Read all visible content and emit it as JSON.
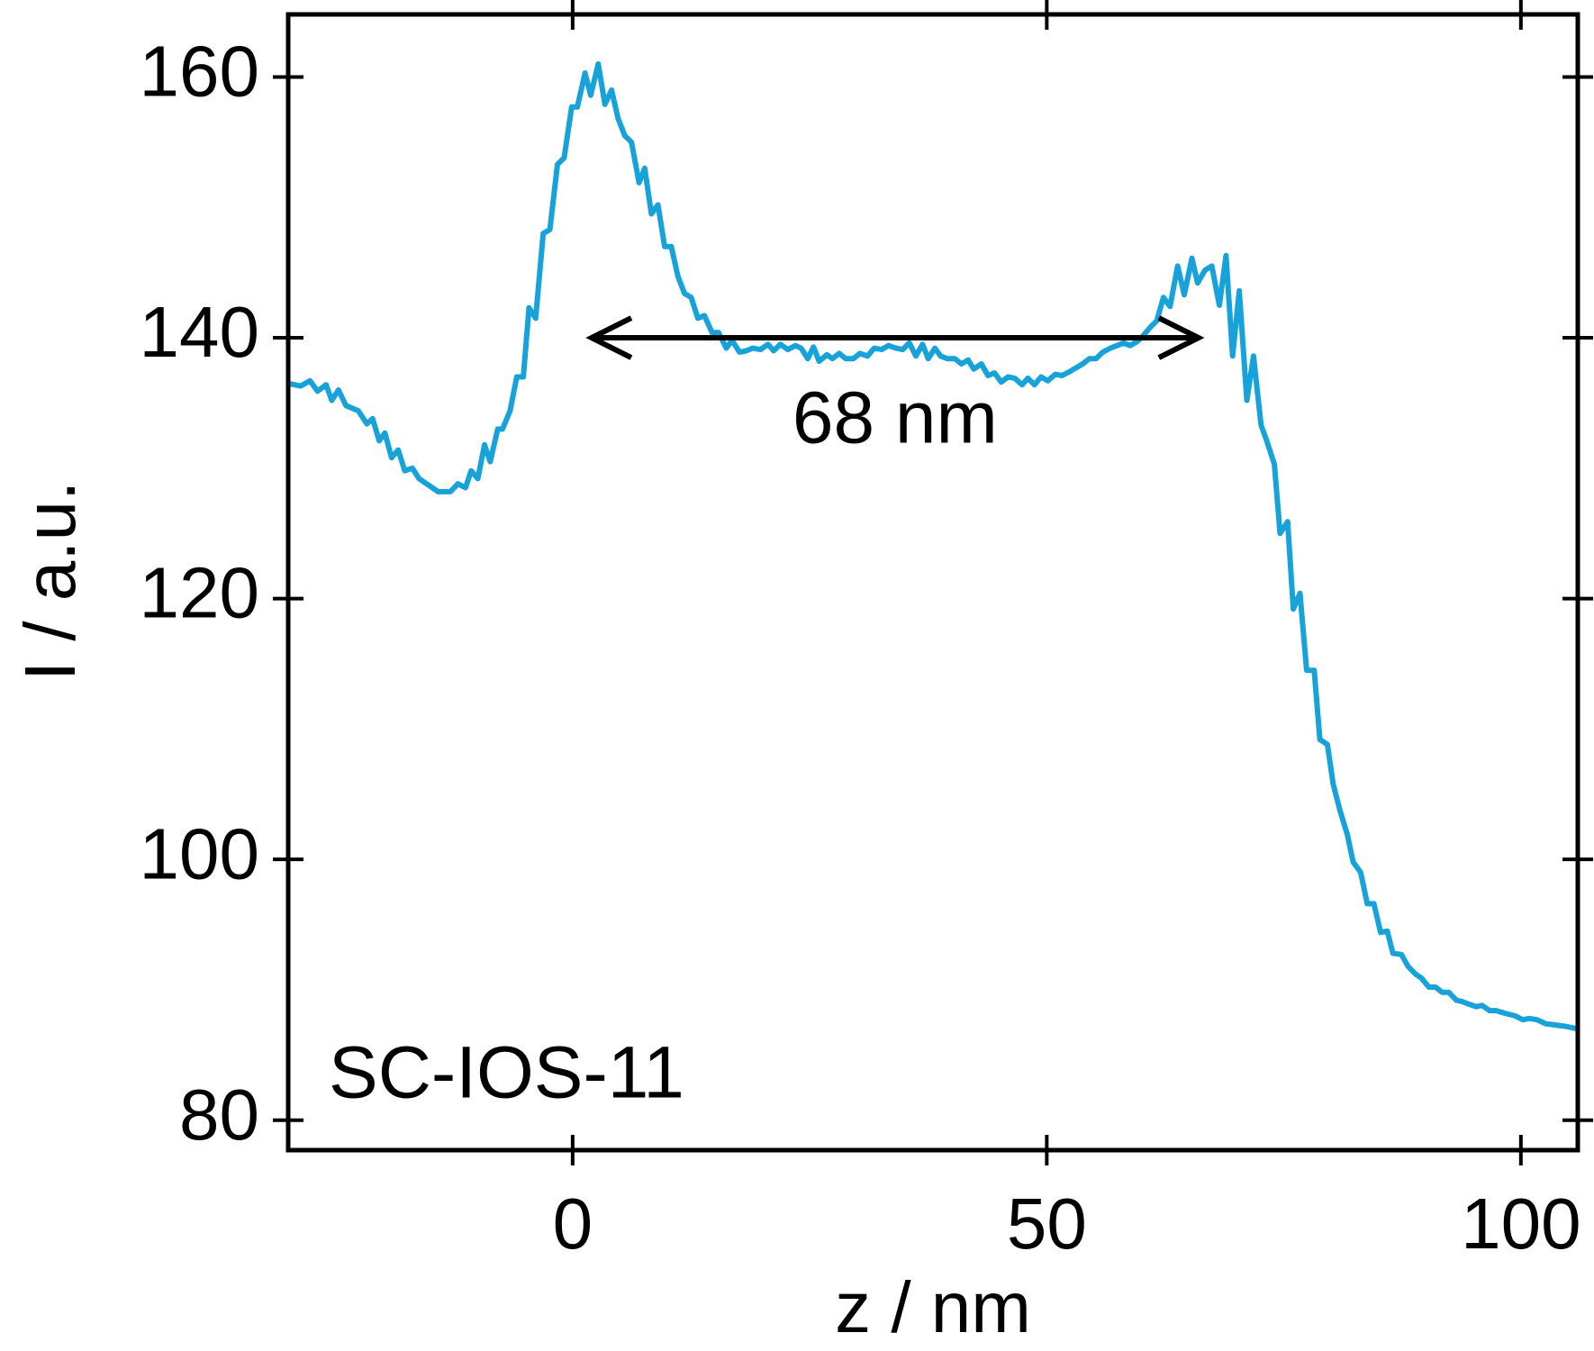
{
  "chart_data": {
    "type": "line",
    "xlabel": "z / nm",
    "ylabel": "I / a.u.",
    "xlim": [
      -30,
      106
    ],
    "ylim": [
      77.7,
      164.8
    ],
    "xticks": [
      0,
      50,
      100
    ],
    "yticks": [
      80,
      100,
      120,
      140,
      160
    ],
    "grid": false,
    "annotations": [
      {
        "text": "68 nm",
        "arrow_x": [
          2,
          66
        ],
        "arrow_y": 140
      },
      {
        "text": "SC-IOS-11"
      }
    ],
    "series": [
      {
        "color": "#17a3d9",
        "x": [
          -30,
          -28.7,
          -27.7,
          -26.9,
          -26,
          -25.4,
          -24.7,
          -23.9,
          -22.6,
          -21.7,
          -21.1,
          -20.4,
          -19.8,
          -19.1,
          -18.4,
          -17.7,
          -16.9,
          -16.2,
          -14.2,
          -12.9,
          -12.1,
          -11.3,
          -10.7,
          -10,
          -9.3,
          -8.7,
          -7.9,
          -7.4,
          -6.6,
          -5.9,
          -5.2,
          -4.6,
          -3.9,
          -3.1,
          -2.4,
          -1.6,
          -0.9,
          -0.1,
          0.5,
          1.3,
          1.9,
          2.7,
          3.4,
          4.1,
          4.8,
          5.5,
          6.2,
          7,
          7.6,
          8.3,
          9,
          9.7,
          10.4,
          11.1,
          11.8,
          12.5,
          13.2,
          13.9,
          14.7,
          15.4,
          16.2,
          16.8,
          17.6,
          18.3,
          19,
          19.8,
          20.6,
          21.2,
          21.9,
          22.7,
          23.5,
          24.1,
          24.8,
          25.4,
          26,
          26.8,
          27.4,
          28.1,
          28.8,
          29.6,
          30.3,
          31.1,
          31.8,
          32.6,
          33.3,
          34.1,
          34.8,
          35.5,
          36.2,
          36.9,
          37.5,
          38.2,
          38.8,
          39.5,
          40.3,
          41,
          41.7,
          42.3,
          43.1,
          43.8,
          44.5,
          45.2,
          45.9,
          46.6,
          47.4,
          48,
          48.7,
          49.4,
          50.1,
          50.9,
          51.6,
          52.4,
          53.1,
          53.8,
          54.5,
          55.2,
          55.9,
          56.7,
          57.4,
          58.1,
          58.8,
          59.5,
          60.1,
          60.9,
          61.6,
          62.3,
          63,
          63.8,
          64.5,
          65.3,
          65.9,
          66.7,
          67.4,
          68.2,
          68.9,
          69.6,
          70.3,
          71.1,
          71.8,
          72.6,
          73.2,
          74,
          74.6,
          75.4,
          76,
          76.7,
          77.4,
          78.2,
          78.8,
          79.6,
          80.2,
          80.9,
          81.7,
          82.3,
          83.1,
          83.8,
          84.5,
          85.2,
          85.9,
          86.5,
          87.4,
          88.1,
          88.9,
          89.5,
          90.3,
          91,
          91.7,
          92.4,
          93.2,
          93.8,
          94.5,
          95.3,
          95.9,
          96.7,
          97.4,
          98.3,
          99.4,
          100.2,
          100.9,
          101.7,
          102.6,
          103.6,
          104.7,
          106
        ],
        "values": [
          136.5,
          136.3,
          136.7,
          135.9,
          136.4,
          135.2,
          136,
          134.8,
          134.4,
          133.4,
          133.8,
          132.1,
          132.7,
          130.8,
          131.4,
          129.8,
          130,
          129.2,
          128.2,
          128.2,
          128.8,
          128.5,
          129.8,
          129.2,
          131.8,
          130.5,
          133,
          133,
          134.4,
          137,
          137,
          142.3,
          141.5,
          148,
          148.3,
          153.3,
          153.8,
          157.7,
          157.7,
          160.3,
          158.6,
          161,
          157.9,
          159,
          156.8,
          155.5,
          155,
          151.9,
          153,
          149.5,
          150.2,
          147,
          147,
          144.7,
          143.4,
          143.1,
          141.5,
          141.7,
          140.4,
          140.4,
          139.2,
          139.8,
          138.9,
          139,
          139.2,
          139.1,
          139.5,
          139,
          139.5,
          139.1,
          139.4,
          139.2,
          138.4,
          139.3,
          138.2,
          138.7,
          138.4,
          138.8,
          138.4,
          138.4,
          138.8,
          138.6,
          139.2,
          139.1,
          139.4,
          139.2,
          139.1,
          139.6,
          138.6,
          139.5,
          138.4,
          139.2,
          138.6,
          138.4,
          138.4,
          138,
          138.3,
          137.6,
          138,
          137.1,
          137.3,
          136.6,
          137,
          136.9,
          136.4,
          136.9,
          136.4,
          137,
          136.7,
          137.2,
          137.1,
          137.4,
          137.7,
          138,
          138.4,
          138.4,
          138.9,
          139.2,
          139.4,
          139.6,
          139.4,
          139.7,
          140.1,
          140.8,
          141.3,
          143.1,
          142.4,
          145.5,
          143.3,
          146.1,
          144.2,
          145.2,
          145.5,
          142.5,
          146.3,
          138.6,
          143.6,
          135.2,
          138.6,
          133.3,
          132.1,
          130.3,
          125,
          125.9,
          119.2,
          120.4,
          114.5,
          114.5,
          109.2,
          108.8,
          105.8,
          103.8,
          101.9,
          99.8,
          99,
          96.6,
          96.6,
          94.4,
          94.5,
          92.8,
          92.7,
          91.8,
          91.2,
          90.9,
          90.2,
          90.2,
          89.8,
          89.8,
          89.2,
          89.1,
          88.9,
          88.7,
          88.8,
          88.4,
          88.4,
          88.2,
          88,
          87.7,
          87.8,
          87.7,
          87.4,
          87.3,
          87.2,
          87
        ]
      }
    ]
  }
}
